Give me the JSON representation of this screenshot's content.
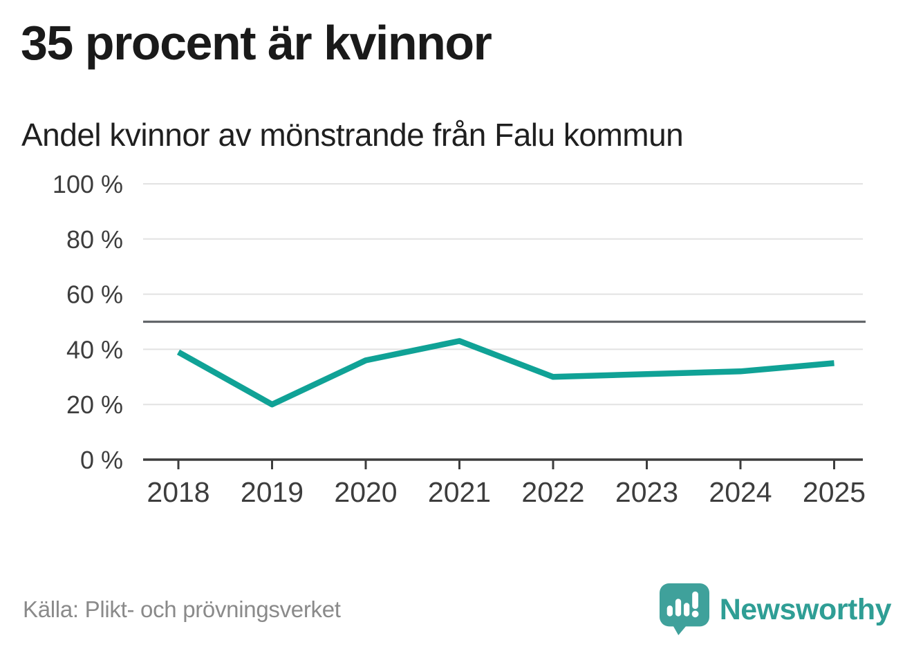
{
  "header": {
    "title": "35 procent är kvinnor",
    "subtitle": "Andel kvinnor av mönstrande från Falu kommun"
  },
  "chart_data": {
    "type": "line",
    "title": "35 procent är kvinnor",
    "subtitle": "Andel kvinnor av mönstrande från Falu kommun",
    "categories": [
      "2018",
      "2019",
      "2020",
      "2021",
      "2022",
      "2023",
      "2024",
      "2025"
    ],
    "series": [
      {
        "name": "Andel kvinnor av mönstrande",
        "values": [
          39,
          20,
          36,
          43,
          30,
          31,
          32,
          35
        ]
      }
    ],
    "unit": "%",
    "ylim": [
      0,
      100
    ],
    "yticks": [
      0,
      20,
      40,
      60,
      80,
      100
    ],
    "ytick_suffix": " %",
    "reference_line": 50,
    "grid": true,
    "legend": "none",
    "colors": {
      "line": "#10a296",
      "grid": "#e2e2e2",
      "axis": "#3d3d3d",
      "reference": "#63666a",
      "tick_text": "#3d3d3d"
    }
  },
  "footer": {
    "source": "Källa: Plikt- och prövningsverket",
    "logo_text": "Newsworthy",
    "logo_colors": {
      "badge": "#3fa19b",
      "wordmark": "#2f9e95"
    }
  }
}
